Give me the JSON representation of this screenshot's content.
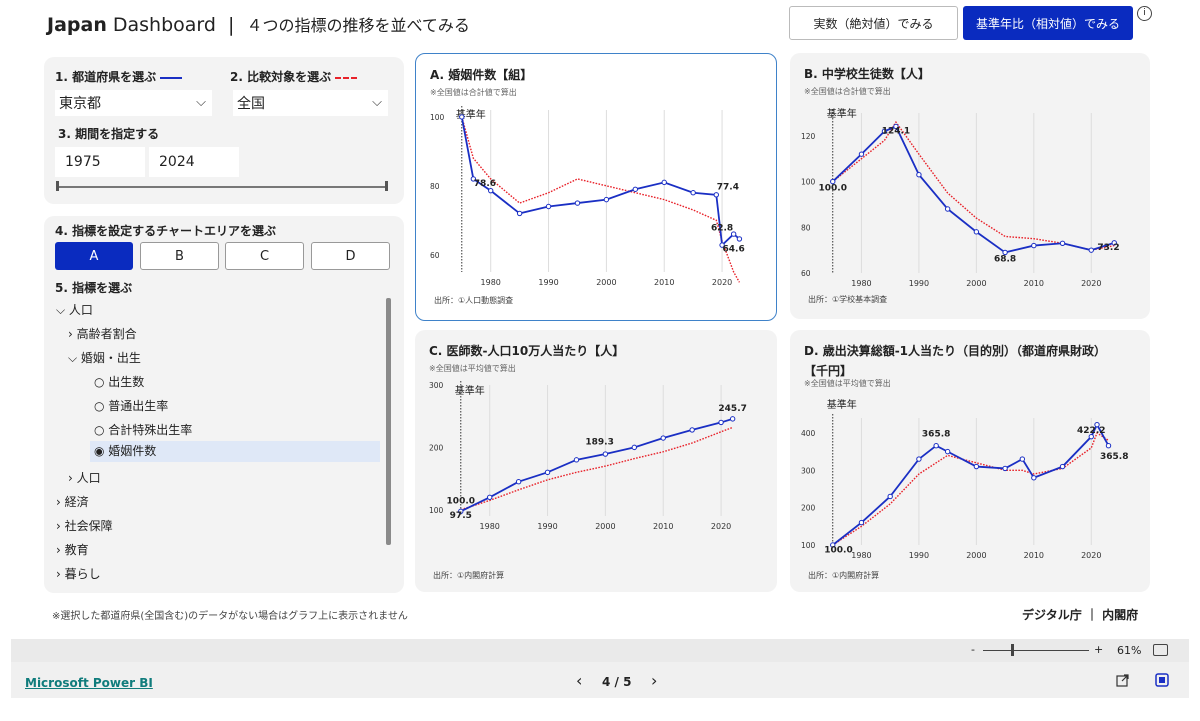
{
  "header": {
    "brand_bold": "Japan",
    "brand_rest": " Dashboard",
    "separator": "|",
    "subtitle": "４つの指標の推移を並べてみる",
    "btn_actual": "実数（絶対値）でみる",
    "btn_ratio": "基準年比（相対値）でみる",
    "info": "i"
  },
  "controls": {
    "step1_label": "1. 都道府県を選ぶ",
    "step2_label": "2. 比較対象を選ぶ",
    "pref_value": "東京都",
    "compare_value": "全国",
    "step3_label": "3. 期間を指定する",
    "start_year": "1975",
    "end_year": "2024",
    "step4_label": "4. 指標を設定するチャートエリアを選ぶ",
    "areas": [
      "A",
      "B",
      "C",
      "D"
    ],
    "step5_label": "5. 指標を選ぶ",
    "colors": {
      "primary": "#1a2fc4",
      "compare": "#e8222a"
    }
  },
  "tree": {
    "items": [
      "⌵ 人口",
      "› 高齢者割合",
      "⌵ 婚姻・出生",
      "○ 出生数",
      "○ 普通出生率",
      "○ 合計特殊出生率",
      "◉ 婚姻件数",
      "› 人口",
      "› 経済",
      "› 社会保障",
      "› 教育",
      "› 暮らし"
    ]
  },
  "footnote": "※選択した都道府県(全国含む)のデータがない場合はグラフ上に表示されません",
  "credit": "デジタル庁 ｜ 内閣府",
  "charts": [
    {
      "id": "A",
      "title": "A. 婚姻件数【組】",
      "title2": "",
      "note": "※全国値は合計値で算出",
      "source": "出所：①人口動態調査",
      "base_label": "基準年",
      "yticks": [
        "100",
        "80",
        "60"
      ],
      "xticks": [
        "1980",
        "1990",
        "2000",
        "2010",
        "2020"
      ],
      "labels": [
        "78.6",
        "77.4",
        "62.8",
        "64.6"
      ]
    },
    {
      "id": "B",
      "title": "B. 中学校生徒数【人】",
      "title2": "",
      "note": "※全国値は合計値で算出",
      "source": "出所：①学校基本調査",
      "base_label": "基準年",
      "yticks": [
        "120",
        "100",
        "80",
        "60"
      ],
      "xticks": [
        "1980",
        "1990",
        "2000",
        "2010",
        "2020"
      ],
      "labels": [
        "100.0",
        "124.1",
        "68.8",
        "73.2"
      ]
    },
    {
      "id": "C",
      "title": "C. 医師数-人口10万人当たり【人】",
      "title2": "",
      "note": "※全国値は平均値で算出",
      "source": "出所：①内閣府計算",
      "base_label": "基準年",
      "yticks": [
        "300",
        "200",
        "100"
      ],
      "xticks": [
        "1980",
        "1990",
        "2000",
        "2010",
        "2020"
      ],
      "labels": [
        "100.0",
        "97.5",
        "189.3",
        "245.7"
      ]
    },
    {
      "id": "D",
      "title": "D. 歳出決算総額-1人当たり（目的別）（都道府県財政）",
      "title2": "【千円】",
      "note": "※全国値は平均値で算出",
      "source": "出所：①内閣府計算",
      "base_label": "基準年",
      "yticks": [
        "400",
        "300",
        "200",
        "100"
      ],
      "xticks": [
        "1980",
        "1990",
        "2000",
        "2010",
        "2020"
      ],
      "labels": [
        "100.0",
        "365.8",
        "422.2",
        "365.8"
      ]
    }
  ],
  "chart_data": [
    {
      "type": "line",
      "title": "A. 婚姻件数【組】",
      "x": [
        1975,
        1977,
        1980,
        1985,
        1990,
        1995,
        2000,
        2005,
        2010,
        2015,
        2019,
        2020,
        2022,
        2023
      ],
      "series": [
        {
          "name": "東京都",
          "values": [
            100,
            82,
            78.6,
            72,
            74,
            75,
            76,
            79,
            81,
            78,
            77.4,
            62.8,
            66,
            64.6
          ]
        },
        {
          "name": "全国",
          "values": [
            100,
            88,
            82,
            75,
            78,
            82,
            80,
            78,
            76,
            73,
            70,
            64,
            55,
            52
          ]
        }
      ],
      "ylim": [
        55,
        102
      ]
    },
    {
      "type": "line",
      "title": "B. 中学校生徒数【人】",
      "x": [
        1975,
        1980,
        1984,
        1986,
        1990,
        1995,
        2000,
        2005,
        2010,
        2015,
        2020,
        2024
      ],
      "series": [
        {
          "name": "東京都",
          "values": [
            100,
            112,
            122,
            124.1,
            103,
            88,
            78,
            69,
            72,
            73,
            70,
            73.2
          ]
        },
        {
          "name": "全国",
          "values": [
            100,
            110,
            118,
            126,
            112,
            95,
            84,
            76,
            75,
            73,
            70,
            72
          ]
        }
      ],
      "ylim": [
        60,
        130
      ]
    },
    {
      "type": "line",
      "title": "C. 医師数-人口10万人当たり【人】",
      "x": [
        1975,
        1980,
        1985,
        1990,
        1995,
        2000,
        2005,
        2010,
        2015,
        2020,
        2022
      ],
      "series": [
        {
          "name": "東京都",
          "values": [
            97.5,
            120,
            145,
            160,
            180,
            189.3,
            200,
            215,
            228,
            240,
            245.7
          ]
        },
        {
          "name": "全国",
          "values": [
            100,
            115,
            132,
            148,
            160,
            170,
            182,
            193,
            207,
            225,
            232
          ]
        }
      ],
      "ylim": [
        90,
        300
      ]
    },
    {
      "type": "line",
      "title": "D. 歳出決算総額-1人当たり（目的別）（都道府県財政）",
      "x": [
        1975,
        1980,
        1985,
        1990,
        1993,
        1995,
        2000,
        2005,
        2008,
        2010,
        2015,
        2020,
        2021,
        2023
      ],
      "series": [
        {
          "name": "東京都",
          "values": [
            100,
            160,
            230,
            330,
            365.8,
            350,
            310,
            305,
            330,
            280,
            310,
            390,
            422.2,
            365.8
          ]
        },
        {
          "name": "全国",
          "values": [
            100,
            150,
            210,
            290,
            320,
            340,
            320,
            300,
            300,
            290,
            305,
            360,
            400,
            380
          ]
        }
      ],
      "ylim": [
        100,
        440
      ]
    }
  ],
  "pbi": {
    "zoom": "61%",
    "page": "4 / 5",
    "brand": "Microsoft Power BI",
    "prev": "‹",
    "next": "›",
    "minus": "-",
    "plus": "+"
  }
}
